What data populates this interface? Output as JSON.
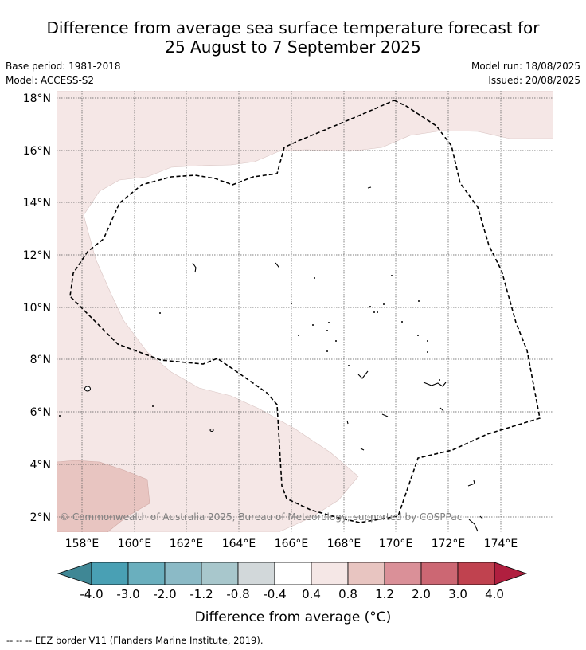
{
  "header": {
    "title_line1": "Difference from average sea surface temperature forecast for",
    "title_line2": "25 August to 7 September 2025",
    "base_period": "Base period: 1981-2018",
    "model": "Model: ACCESS-S2",
    "model_run": "Model run: 18/08/2025",
    "issued": "Issued: 20/08/2025"
  },
  "map": {
    "lat_labels": [
      "18°N",
      "16°N",
      "14°N",
      "12°N",
      "10°N",
      "8°N",
      "6°N",
      "4°N",
      "2°N"
    ],
    "lon_labels": [
      "158°E",
      "160°E",
      "162°E",
      "164°E",
      "166°E",
      "168°E",
      "170°E",
      "172°E",
      "174°E"
    ],
    "lat_values": [
      18,
      16,
      14,
      12,
      10,
      8,
      6,
      4,
      2
    ],
    "lon_values": [
      158,
      160,
      162,
      164,
      166,
      168,
      170,
      172,
      174
    ],
    "extent": {
      "lon_min": 157,
      "lon_max": 176,
      "lat_min": 1.5,
      "lat_max": 18.2
    },
    "copyright": "© Commonwealth of Australia 2025, Bureau of Meteorology, supported by COSPPac",
    "grid": true,
    "shading_colors": {
      "light": "#f5e7e6",
      "medium": "#e8c5c1"
    }
  },
  "colorbar": {
    "title": "Difference from average (°C)",
    "ticks": [
      "-4.0",
      "-3.0",
      "-2.0",
      "-1.2",
      "-0.8",
      "-0.4",
      "0.4",
      "0.8",
      "1.2",
      "2.0",
      "3.0",
      "4.0"
    ],
    "low_extend_color": "#3f8795",
    "high_extend_color": "#b01f3f",
    "colors": [
      "#49a0b4",
      "#6aafbe",
      "#8bbac6",
      "#a8c7cc",
      "#d2d8da",
      "#ffffff",
      "#f5e7e6",
      "#e8c5c1",
      "#da9098",
      "#cc6773",
      "#c0424f"
    ]
  },
  "footer": {
    "legend_symbol": "-- -- --",
    "legend_text": "EEZ border V11 (Flanders Marine Institute, 2019)."
  }
}
